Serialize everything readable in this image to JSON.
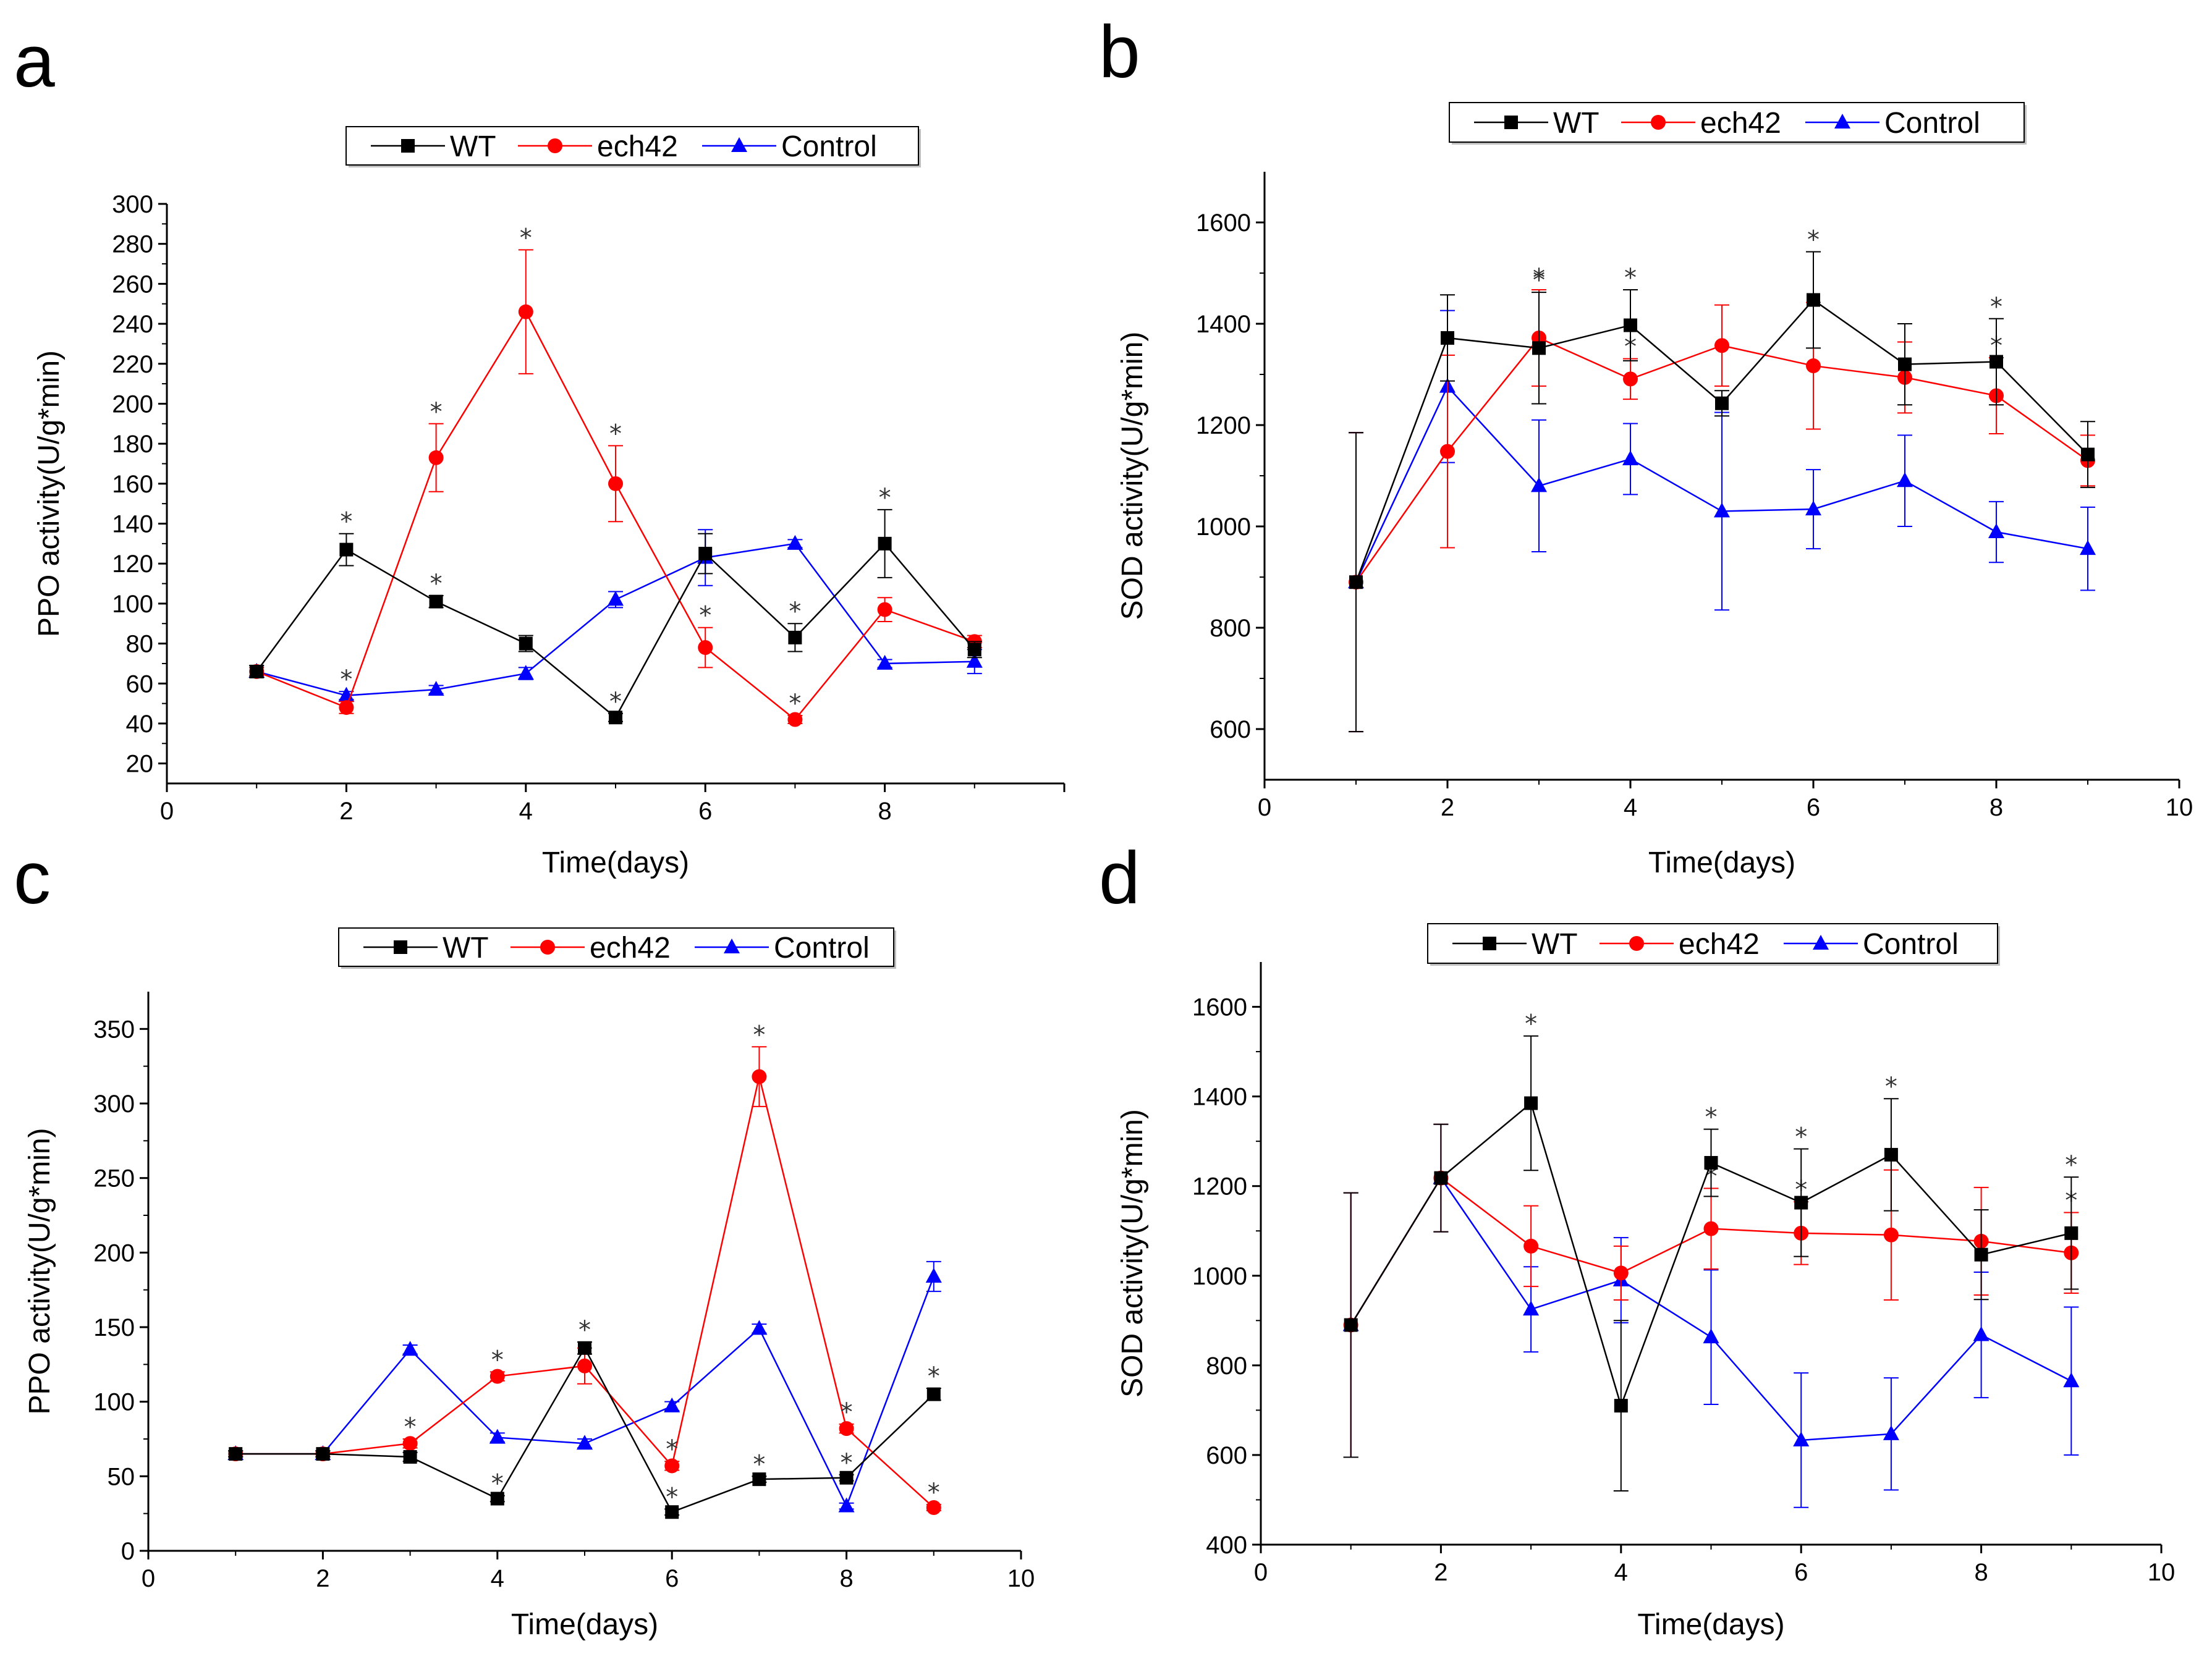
{
  "chart_data": [
    {
      "panel": "a",
      "type": "line",
      "xlabel": "Time(days)",
      "ylabel": "PPO activity(U/g*min)",
      "xlim": [
        0,
        10
      ],
      "ylim": [
        10,
        300
      ],
      "xticks": [
        0,
        2,
        4,
        6,
        8
      ],
      "yticks": [
        20,
        40,
        60,
        80,
        100,
        120,
        140,
        160,
        180,
        200,
        220,
        240,
        260,
        280,
        300
      ],
      "legend": [
        "WT",
        "ech42",
        "Control"
      ],
      "legend_position": "top-center",
      "x": [
        1,
        2,
        3,
        4,
        5,
        6,
        7,
        8,
        9
      ],
      "series": [
        {
          "name": "WT",
          "color": "#000000",
          "marker": "square",
          "values": [
            66,
            127,
            101,
            80,
            43,
            125,
            83,
            130,
            77
          ],
          "errors": [
            3,
            8,
            3,
            4,
            2,
            10,
            7,
            17,
            4
          ],
          "stars": [
            false,
            true,
            true,
            false,
            true,
            false,
            true,
            true,
            false
          ]
        },
        {
          "name": "ech42",
          "color": "#ff0000",
          "marker": "circle",
          "values": [
            66,
            48,
            173,
            246,
            160,
            78,
            42,
            97,
            81
          ],
          "errors": [
            2,
            3,
            17,
            31,
            19,
            10,
            2,
            6,
            3
          ],
          "stars": [
            false,
            false,
            true,
            true,
            true,
            true,
            true,
            false,
            false
          ]
        },
        {
          "name": "Control",
          "color": "#0000ff",
          "marker": "triangle",
          "values": [
            66,
            54,
            57,
            65,
            102,
            123,
            130,
            70,
            71
          ],
          "errors": [
            3,
            2,
            2,
            3,
            4,
            14,
            2,
            2,
            6
          ],
          "stars": [
            false,
            true,
            false,
            false,
            false,
            false,
            false,
            false,
            false
          ]
        }
      ]
    },
    {
      "panel": "b",
      "type": "line",
      "xlabel": "Time(days)",
      "ylabel": "SOD activity(U/g*min)",
      "xlim": [
        0,
        10
      ],
      "ylim": [
        500,
        1700
      ],
      "xticks": [
        0,
        2,
        4,
        6,
        8,
        10
      ],
      "yticks": [
        600,
        800,
        1000,
        1200,
        1400,
        1600
      ],
      "legend": [
        "WT",
        "ech42",
        "Control"
      ],
      "legend_position": "top-center",
      "x": [
        1,
        2,
        3,
        4,
        5,
        6,
        7,
        8,
        9
      ],
      "series": [
        {
          "name": "WT",
          "color": "#000000",
          "marker": "square",
          "values": [
            890,
            1372,
            1352,
            1397,
            1243,
            1447,
            1320,
            1325,
            1142
          ],
          "errors": [
            295,
            85,
            110,
            70,
            25,
            95,
            80,
            85,
            65
          ],
          "stars": [
            false,
            false,
            true,
            true,
            false,
            true,
            false,
            true,
            false
          ]
        },
        {
          "name": "ech42",
          "color": "#ff0000",
          "marker": "circle",
          "values": [
            890,
            1148,
            1372,
            1291,
            1357,
            1317,
            1294,
            1258,
            1130
          ],
          "errors": [
            295,
            190,
            95,
            40,
            80,
            125,
            70,
            75,
            50
          ],
          "stars": [
            false,
            false,
            true,
            true,
            false,
            false,
            false,
            true,
            false
          ]
        },
        {
          "name": "Control",
          "color": "#0000ff",
          "marker": "triangle",
          "values": [
            890,
            1276,
            1080,
            1133,
            1030,
            1034,
            1090,
            989,
            956
          ],
          "errors": [
            295,
            150,
            130,
            70,
            195,
            78,
            90,
            60,
            82
          ],
          "stars": [
            false,
            false,
            false,
            false,
            false,
            false,
            false,
            false,
            false
          ]
        }
      ]
    },
    {
      "panel": "c",
      "type": "line",
      "xlabel": "Time(days)",
      "ylabel": "PPO activity(U/g*min)",
      "xlim": [
        0,
        10
      ],
      "ylim": [
        0,
        375
      ],
      "xticks": [
        0,
        2,
        4,
        6,
        8,
        10
      ],
      "yticks": [
        0,
        50,
        100,
        150,
        200,
        250,
        300,
        350
      ],
      "legend": [
        "WT",
        "ech42",
        "Control"
      ],
      "legend_position": "top-center",
      "x": [
        1,
        2,
        3,
        4,
        5,
        6,
        7,
        8,
        9
      ],
      "series": [
        {
          "name": "WT",
          "color": "#000000",
          "marker": "square",
          "values": [
            65,
            65,
            63,
            35,
            136,
            26,
            48,
            49,
            105
          ],
          "errors": [
            2,
            2,
            3,
            2,
            4,
            2,
            2,
            2,
            4
          ],
          "stars": [
            false,
            false,
            false,
            true,
            true,
            true,
            true,
            true,
            true
          ]
        },
        {
          "name": "ech42",
          "color": "#ff0000",
          "marker": "circle",
          "values": [
            65,
            65,
            72,
            117,
            124,
            57,
            318,
            82,
            29
          ],
          "errors": [
            2,
            2,
            3,
            3,
            12,
            3,
            20,
            3,
            2
          ],
          "stars": [
            false,
            false,
            true,
            true,
            false,
            true,
            true,
            true,
            true
          ]
        },
        {
          "name": "Control",
          "color": "#0000ff",
          "marker": "triangle",
          "values": [
            65,
            65,
            135,
            76,
            72,
            97,
            149,
            30,
            184
          ],
          "errors": [
            2,
            2,
            3,
            3,
            3,
            3,
            3,
            2,
            10
          ],
          "stars": [
            false,
            false,
            false,
            false,
            false,
            false,
            false,
            false,
            false
          ]
        }
      ]
    },
    {
      "panel": "d",
      "type": "line",
      "xlabel": "Time(days)",
      "ylabel": "SOD activity(U/g*min)",
      "xlim": [
        0,
        10
      ],
      "ylim": [
        400,
        1700
      ],
      "xticks": [
        0,
        2,
        4,
        6,
        8,
        10
      ],
      "yticks": [
        400,
        600,
        800,
        1000,
        1200,
        1400,
        1600
      ],
      "legend": [
        "WT",
        "ech42",
        "Control"
      ],
      "legend_position": "top-center",
      "x": [
        1,
        2,
        3,
        4,
        5,
        6,
        7,
        8,
        9
      ],
      "series": [
        {
          "name": "WT",
          "color": "#000000",
          "marker": "square",
          "values": [
            890,
            1218,
            1385,
            710,
            1252,
            1163,
            1270,
            1047,
            1095
          ],
          "errors": [
            295,
            120,
            150,
            190,
            75,
            120,
            125,
            100,
            125
          ],
          "stars": [
            false,
            false,
            true,
            false,
            true,
            true,
            true,
            false,
            true
          ]
        },
        {
          "name": "ech42",
          "color": "#ff0000",
          "marker": "circle",
          "values": [
            890,
            1218,
            1066,
            1006,
            1105,
            1095,
            1091,
            1077,
            1051
          ],
          "errors": [
            295,
            120,
            90,
            60,
            90,
            70,
            145,
            120,
            90
          ],
          "stars": [
            false,
            false,
            false,
            false,
            true,
            true,
            true,
            false,
            true
          ]
        },
        {
          "name": "Control",
          "color": "#0000ff",
          "marker": "triangle",
          "values": [
            890,
            1218,
            925,
            990,
            863,
            633,
            647,
            868,
            765
          ],
          "errors": [
            295,
            120,
            95,
            95,
            150,
            150,
            125,
            140,
            165
          ],
          "stars": [
            false,
            false,
            false,
            false,
            false,
            false,
            false,
            false,
            false
          ]
        }
      ]
    }
  ]
}
